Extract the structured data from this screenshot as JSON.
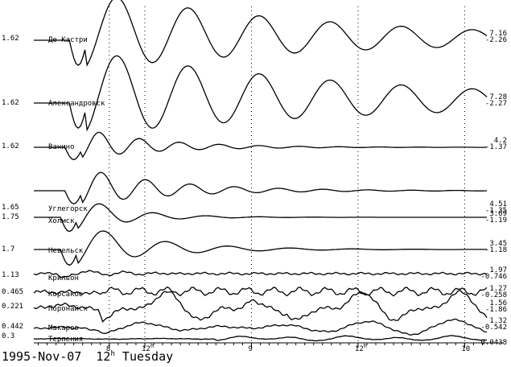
{
  "footer": {
    "date": "1995-Nov-07",
    "hour": "12",
    "hour_sup": "h",
    "weekday": "Tuesday"
  },
  "chart_data": {
    "type": "line",
    "title": "",
    "x_ticks": [
      {
        "label": "8",
        "sup": "",
        "hour": 8
      },
      {
        "label": "12",
        "sup": "h",
        "hour": 12
      },
      {
        "label": "9",
        "sup": "",
        "hour": 24
      },
      {
        "label": "12",
        "sup": "h",
        "hour": 36
      },
      {
        "label": "10",
        "sup": "",
        "hour": 48
      }
    ],
    "xlim_hours": [
      -0.5,
      50.5
    ],
    "grid": true,
    "series": [
      {
        "name": "Де-Кастри",
        "scale": "1.62",
        "max": "7.16",
        "min": "-2.26",
        "amp": 1.0,
        "onset": 5.5,
        "decay": 0.035,
        "period": 8.0,
        "initial": -1.3,
        "swell": 0,
        "noise": 0,
        "dip": 0
      },
      {
        "name": "Александровск",
        "scale": "1.62",
        "max": "7.28",
        "min": "-2.27",
        "amp": 1.0,
        "onset": 5.5,
        "decay": 0.03,
        "period": 8.0,
        "initial": -1.2,
        "swell": 0,
        "noise": 0,
        "dip": 0
      },
      {
        "name": "Ванино",
        "scale": "1.62",
        "max": "4.2",
        "min": "-1.37",
        "amp": 0.85,
        "onset": 5.0,
        "decay": 0.12,
        "period": 4.5,
        "initial": -1.4,
        "swell": 0,
        "noise": 0,
        "dip": 0
      },
      {
        "name": "Углегорск",
        "scale": "1.65",
        "max": "4.51",
        "min": "-1.35",
        "amp": 0.9,
        "onset": 5.0,
        "decay": 0.1,
        "period": 5.0,
        "initial": -1.3,
        "swell": 0,
        "noise": 0,
        "dip": 0
      },
      {
        "name": "Холмск",
        "scale": "1.75",
        "max": "3.69",
        "min": "-1.19",
        "amp": 0.95,
        "onset": 4.5,
        "decay": 0.18,
        "period": 6.0,
        "initial": -1.6,
        "swell": 0,
        "noise": 0,
        "dip": 0
      },
      {
        "name": "Невельск",
        "scale": "1.7",
        "max": "3.45",
        "min": "-1.18",
        "amp": 1.0,
        "onset": 4.5,
        "decay": 0.12,
        "period": 7.0,
        "initial": -1.5,
        "swell": 0,
        "noise": 0,
        "dip": 0
      },
      {
        "name": "Крильон",
        "scale": "1.13",
        "max": "1.97",
        "min": "-0.746",
        "amp": 0.6,
        "onset": 4.0,
        "decay": 0.2,
        "period": 4.0,
        "initial": -1.2,
        "swell": 0,
        "noise": 0.25,
        "dip": 0
      },
      {
        "name": "Корсаков",
        "scale": "0.465",
        "max": "1.27",
        "min": "-0.258",
        "amp": 0.8,
        "onset": 7.0,
        "decay": 0.01,
        "period": 3.0,
        "initial": -0.6,
        "swell": 0,
        "noise": 0.5,
        "dip": 0
      },
      {
        "name": "Поронайск",
        "scale": "0.221",
        "max": "1.56",
        "min": "-1.86",
        "amp": 0.5,
        "onset": 7.0,
        "decay": 0.0,
        "period": 5.5,
        "initial": 0,
        "swell": 0.9,
        "noise": 0.2,
        "dip": 1
      },
      {
        "name": "Макаров",
        "scale": "0.442",
        "max": "1.32",
        "min": "-0.542",
        "amp": 0.7,
        "onset": 7.0,
        "decay": 0.0,
        "period": 9.0,
        "initial": -0.5,
        "swell": 0.6,
        "noise": 0.2,
        "dip": 0
      },
      {
        "name": "Терпения",
        "scale": "0.3",
        "max": "",
        "min": "-0.0438",
        "amp": 0.5,
        "onset": 20.0,
        "decay": 0.0,
        "period": 6.0,
        "initial": 0,
        "swell": 0.3,
        "noise": 0.1,
        "dip": 0
      }
    ]
  }
}
